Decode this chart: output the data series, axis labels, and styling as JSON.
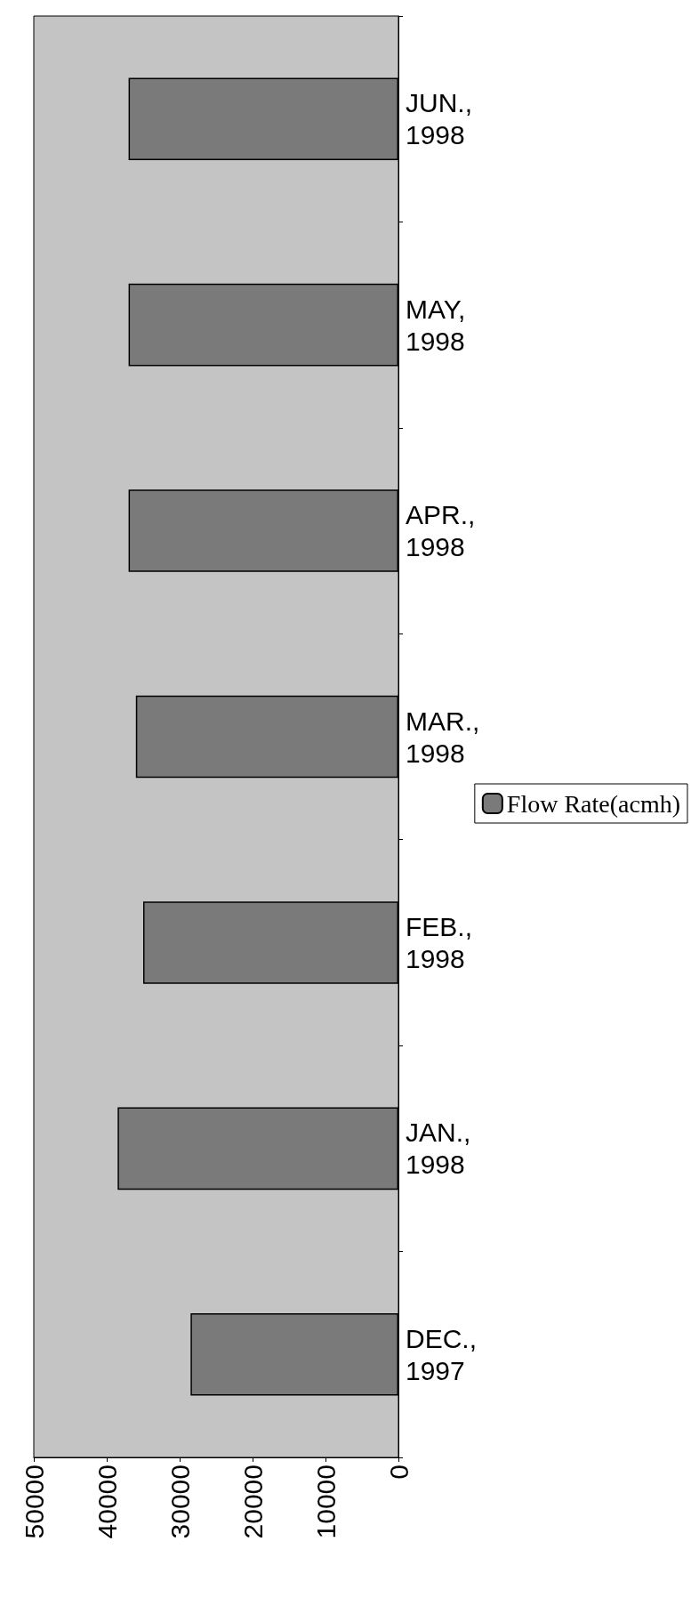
{
  "chart_data": {
    "type": "bar",
    "orientation": "horizontal",
    "categories": [
      "JUN., 1998",
      "MAY, 1998",
      "APR., 1998",
      "MAR., 1998",
      "FEB., 1998",
      "JAN., 1998",
      "DEC., 1997"
    ],
    "series": [
      {
        "name": "Flow Rate(acmh)",
        "color": "#7a7a7a",
        "values": [
          37000,
          37000,
          37000,
          36000,
          35000,
          38500,
          28500
        ]
      }
    ],
    "xlim": [
      50000,
      0
    ],
    "xticks": [
      50000,
      40000,
      30000,
      20000,
      10000,
      0
    ],
    "grid": false,
    "legend": "right"
  }
}
